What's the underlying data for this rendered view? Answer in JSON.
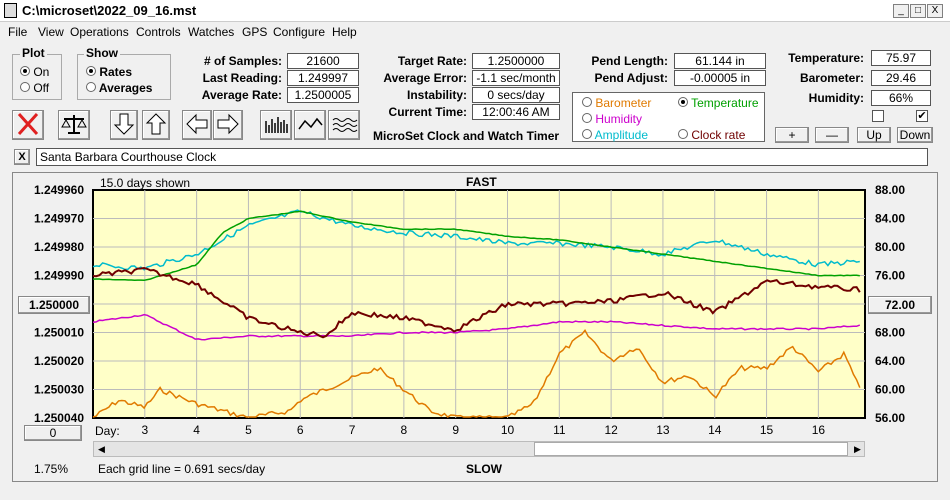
{
  "window": {
    "title": "C:\\microset\\2022_09_16.mst",
    "min": "_",
    "max": "□",
    "close": "X"
  },
  "menu": [
    "File",
    "View",
    "Operations",
    "Controls",
    "Watches",
    "GPS",
    "Configure",
    "Help"
  ],
  "plot": {
    "label": "Plot",
    "on": "On",
    "off": "Off"
  },
  "show": {
    "label": "Show",
    "rates": "Rates",
    "averages": "Averages"
  },
  "stats": {
    "samples_label": "# of Samples:",
    "samples": "21600",
    "last_label": "Last Reading:",
    "last": "1.249997",
    "avg_label": "Average Rate:",
    "avg": "1.2500005",
    "target_label": "Target Rate:",
    "target": "1.2500000",
    "avgerr_label": "Average Error:",
    "avgerr": "-1.1 sec/month",
    "instab_label": "Instability:",
    "instab": "0 secs/day",
    "time_label": "Current Time:",
    "time": "12:00:46 AM",
    "pendlen_label": "Pend Length:",
    "pendlen": "61.144 in",
    "pendadj_label": "Pend Adjust:",
    "pendadj": "-0.00005 in",
    "temp_label": "Temperature:",
    "temp": "75.97",
    "baro_label": "Barometer:",
    "baro": "29.46",
    "hum_label": "Humidity:",
    "hum": "66%"
  },
  "app_title": "MicroSet Clock and Watch Timer",
  "secondary": {
    "barometer": "Barometer",
    "temperature": "Temperature",
    "humidity": "Humidity",
    "amplitude": "Amplitude",
    "clockrate": "Clock rate",
    "colors": {
      "barometer": "#e07a00",
      "temperature": "#00a000",
      "humidity": "#cc00cc",
      "amplitude": "#00bbcc",
      "clockrate": "#700000"
    }
  },
  "scale_buttons": {
    "plus": "+",
    "minus": "—",
    "up": "Up",
    "down": "Down"
  },
  "checkboxes": {
    "one": "",
    "two": "✔"
  },
  "clock_close": "X",
  "clock_name": "Santa Barbara Courthouse Clock",
  "chart_data": {
    "type": "line",
    "title_top": "FAST",
    "title_bottom": "SLOW",
    "days_shown": "15.0 days shown",
    "grid_note": "Each grid line = 0.691 secs/day",
    "left_ticks": [
      "1.249960",
      "1.249970",
      "1.249980",
      "1.249990",
      "1.250000",
      "1.250010",
      "1.250020",
      "1.250030",
      "1.250040"
    ],
    "right_ticks": [
      "88.00",
      "84.00",
      "80.00",
      "76.00",
      "72.00",
      "68.00",
      "64.00",
      "60.00",
      "56.00"
    ],
    "day_label": "Day:",
    "days": [
      "3",
      "4",
      "5",
      "6",
      "7",
      "8",
      "9",
      "10",
      "11",
      "12",
      "13",
      "14",
      "15",
      "16"
    ],
    "left_box": "1.250000",
    "right_box": "72.00",
    "zero_box": "0",
    "pct": "1.75%",
    "series": [
      {
        "name": "Clock rate",
        "color": "#700000",
        "axis": "left",
        "x": [
          2,
          3,
          4,
          5,
          6,
          6.5,
          7,
          8,
          9,
          10,
          11,
          12,
          13,
          14,
          15,
          16,
          16.8
        ],
        "values": [
          1.24999,
          1.249988,
          1.249993,
          1.250005,
          1.25001,
          1.250011,
          1.250003,
          1.250005,
          1.250009,
          1.25,
          1.25,
          1.249999,
          1.249996,
          1.250003,
          1.249992,
          1.249994,
          1.249995
        ]
      },
      {
        "name": "Temperature",
        "color": "#00a000",
        "axis": "right",
        "x": [
          2,
          3,
          4,
          4.5,
          5,
          6,
          7,
          8,
          9,
          10,
          11,
          12,
          13,
          14,
          15,
          16,
          16.8
        ],
        "values": [
          75.5,
          75.3,
          77.5,
          82.0,
          84.0,
          85.0,
          83.5,
          82.5,
          82.5,
          81.5,
          81.0,
          80.0,
          79.0,
          78.0,
          77.0,
          76.0,
          76.0
        ]
      },
      {
        "name": "Amplitude",
        "color": "#00bbcc",
        "axis": "right",
        "x": [
          2,
          3,
          4,
          4.5,
          5,
          6,
          7,
          8,
          9,
          10,
          11,
          12,
          13,
          14,
          15,
          16,
          16.8
        ],
        "values": [
          77.5,
          77.0,
          79.0,
          81.0,
          83.0,
          85.0,
          83.0,
          82.0,
          81.5,
          80.5,
          80.5,
          80.0,
          79.0,
          81.0,
          79.0,
          77.5,
          78.0
        ]
      },
      {
        "name": "Humidity",
        "color": "#cc00cc",
        "axis": "right",
        "x": [
          2,
          3,
          4,
          5,
          6,
          7,
          8,
          9,
          10,
          11,
          12,
          13,
          14,
          15,
          16,
          16.8
        ],
        "values": [
          69.5,
          70.5,
          67.0,
          67.5,
          67.5,
          67.5,
          68.0,
          68.0,
          68.5,
          69.5,
          69.5,
          69.0,
          68.5,
          68.5,
          68.5,
          69.0
        ]
      },
      {
        "name": "Barometer",
        "color": "#e07a00",
        "axis": "right",
        "x": [
          2,
          2.5,
          3,
          3.3,
          4,
          4.5,
          5,
          5.8,
          6,
          6.8,
          7.5,
          8.5,
          9,
          10,
          10.5,
          11,
          11.5,
          12,
          12.5,
          13,
          13.5,
          14,
          14.5,
          15,
          15.5,
          16,
          16.5,
          16.8
        ],
        "values": [
          56.0,
          58.5,
          57.5,
          60.0,
          58.0,
          57.0,
          56.0,
          57.0,
          58.5,
          61.0,
          63.0,
          57.0,
          56.0,
          56.0,
          58.0,
          65.0,
          68.0,
          64.0,
          66.0,
          61.0,
          62.0,
          59.0,
          63.0,
          63.0,
          66.0,
          62.5,
          65.0,
          60.0
        ]
      }
    ]
  }
}
